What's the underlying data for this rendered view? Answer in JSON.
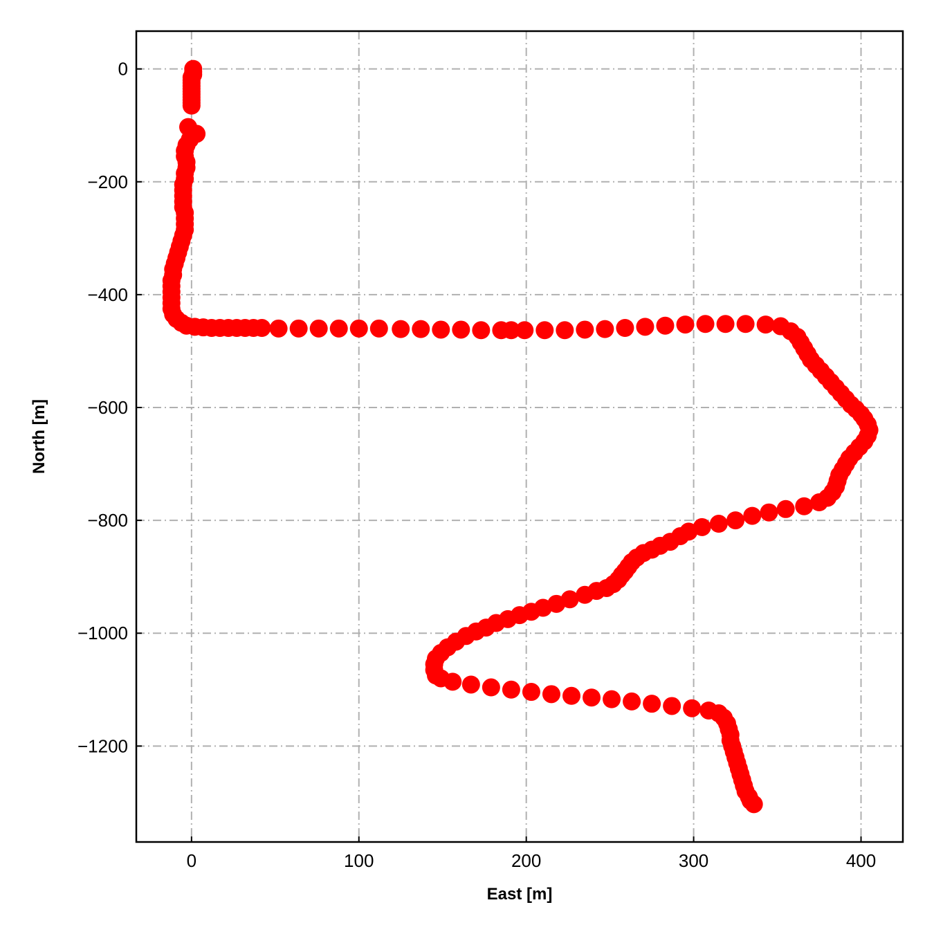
{
  "chart_data": {
    "type": "scatter",
    "title": "",
    "xlabel": "East [m]",
    "ylabel": "North [m]",
    "xlim": [
      -33,
      425
    ],
    "ylim": [
      -1370,
      67
    ],
    "grid": true,
    "xticks": [
      0,
      100,
      200,
      300,
      400
    ],
    "yticks": [
      0,
      -200,
      -400,
      -600,
      -800,
      -1000,
      -1200
    ],
    "xtick_labels": [
      "0",
      "100",
      "200",
      "300",
      "400"
    ],
    "ytick_labels": [
      "0",
      "−200",
      "−400",
      "−600",
      "−800",
      "−1000",
      "−1200"
    ],
    "marker_color": "#ff0000",
    "grid_color": "#b0b0b0",
    "series": [
      {
        "points": [
          [
            1,
            0
          ],
          [
            1,
            -5
          ],
          [
            1,
            -10
          ],
          [
            0,
            -15
          ],
          [
            0,
            -20
          ],
          [
            0,
            -25
          ],
          [
            0,
            -30
          ],
          [
            0,
            -35
          ],
          [
            0,
            -40
          ],
          [
            0,
            -45
          ],
          [
            0,
            -50
          ],
          [
            0,
            -55
          ],
          [
            0,
            -60
          ],
          [
            0,
            -65
          ],
          [
            -2,
            -103
          ],
          [
            3,
            -115
          ],
          [
            -1,
            -125
          ],
          [
            -3,
            -135
          ],
          [
            -4,
            -145
          ],
          [
            -4,
            -155
          ],
          [
            -3,
            -165
          ],
          [
            -3,
            -175
          ],
          [
            -4,
            -185
          ],
          [
            -4,
            -195
          ],
          [
            -5,
            -205
          ],
          [
            -5,
            -215
          ],
          [
            -5,
            -225
          ],
          [
            -5,
            -235
          ],
          [
            -5,
            -245
          ],
          [
            -4,
            -255
          ],
          [
            -4,
            -265
          ],
          [
            -4,
            -275
          ],
          [
            -4,
            -285
          ],
          [
            -5,
            -295
          ],
          [
            -6,
            -305
          ],
          [
            -7,
            -315
          ],
          [
            -8,
            -325
          ],
          [
            -9,
            -335
          ],
          [
            -10,
            -345
          ],
          [
            -11,
            -355
          ],
          [
            -11,
            -365
          ],
          [
            -12,
            -375
          ],
          [
            -12,
            -385
          ],
          [
            -12,
            -395
          ],
          [
            -12,
            -405
          ],
          [
            -12,
            -415
          ],
          [
            -12,
            -425
          ],
          [
            -11,
            -435
          ],
          [
            -9,
            -443
          ],
          [
            -6,
            -450
          ],
          [
            -3,
            -455
          ],
          [
            2,
            -457
          ],
          [
            7,
            -458
          ],
          [
            12,
            -459
          ],
          [
            17,
            -459
          ],
          [
            22,
            -459
          ],
          [
            27,
            -459
          ],
          [
            32,
            -459
          ],
          [
            37,
            -459
          ],
          [
            42,
            -459
          ],
          [
            52,
            -460
          ],
          [
            64,
            -460
          ],
          [
            76,
            -460
          ],
          [
            88,
            -460
          ],
          [
            100,
            -460
          ],
          [
            112,
            -460
          ],
          [
            125,
            -461
          ],
          [
            137,
            -461
          ],
          [
            149,
            -462
          ],
          [
            161,
            -462
          ],
          [
            173,
            -463
          ],
          [
            185,
            -463
          ],
          [
            191,
            -463
          ],
          [
            199,
            -463
          ],
          [
            211,
            -463
          ],
          [
            223,
            -463
          ],
          [
            235,
            -462
          ],
          [
            247,
            -461
          ],
          [
            259,
            -459
          ],
          [
            271,
            -457
          ],
          [
            283,
            -455
          ],
          [
            295,
            -453
          ],
          [
            307,
            -452
          ],
          [
            319,
            -452
          ],
          [
            331,
            -452
          ],
          [
            343,
            -453
          ],
          [
            352,
            -456
          ],
          [
            358,
            -465
          ],
          [
            362,
            -475
          ],
          [
            364,
            -485
          ],
          [
            366,
            -495
          ],
          [
            368,
            -505
          ],
          [
            370,
            -515
          ],
          [
            373,
            -525
          ],
          [
            376,
            -535
          ],
          [
            379,
            -545
          ],
          [
            382,
            -555
          ],
          [
            385,
            -565
          ],
          [
            388,
            -575
          ],
          [
            391,
            -585
          ],
          [
            394,
            -595
          ],
          [
            397,
            -603
          ],
          [
            400,
            -612
          ],
          [
            402,
            -620
          ],
          [
            404,
            -630
          ],
          [
            405,
            -640
          ],
          [
            404,
            -650
          ],
          [
            402,
            -660
          ],
          [
            399,
            -670
          ],
          [
            396,
            -680
          ],
          [
            393,
            -690
          ],
          [
            391,
            -700
          ],
          [
            389,
            -710
          ],
          [
            387,
            -720
          ],
          [
            386,
            -730
          ],
          [
            385,
            -740
          ],
          [
            383,
            -750
          ],
          [
            380,
            -760
          ],
          [
            375,
            -768
          ],
          [
            366,
            -775
          ],
          [
            355,
            -780
          ],
          [
            345,
            -786
          ],
          [
            335,
            -792
          ],
          [
            325,
            -800
          ],
          [
            315,
            -806
          ],
          [
            305,
            -812
          ],
          [
            297,
            -820
          ],
          [
            292,
            -828
          ],
          [
            286,
            -838
          ],
          [
            280,
            -845
          ],
          [
            275,
            -852
          ],
          [
            270,
            -858
          ],
          [
            266,
            -866
          ],
          [
            263,
            -874
          ],
          [
            261,
            -882
          ],
          [
            259,
            -890
          ],
          [
            257,
            -897
          ],
          [
            255,
            -905
          ],
          [
            252,
            -913
          ],
          [
            248,
            -920
          ],
          [
            242,
            -925
          ],
          [
            235,
            -932
          ],
          [
            226,
            -940
          ],
          [
            218,
            -948
          ],
          [
            210,
            -955
          ],
          [
            203,
            -962
          ],
          [
            196,
            -968
          ],
          [
            189,
            -975
          ],
          [
            182,
            -982
          ],
          [
            176,
            -990
          ],
          [
            170,
            -997
          ],
          [
            164,
            -1005
          ],
          [
            158,
            -1015
          ],
          [
            153,
            -1025
          ],
          [
            149,
            -1035
          ],
          [
            146,
            -1045
          ],
          [
            145,
            -1055
          ],
          [
            145,
            -1065
          ],
          [
            146,
            -1075
          ],
          [
            149,
            -1080
          ],
          [
            156,
            -1086
          ],
          [
            167,
            -1091
          ],
          [
            179,
            -1096
          ],
          [
            191,
            -1100
          ],
          [
            203,
            -1104
          ],
          [
            215,
            -1108
          ],
          [
            227,
            -1111
          ],
          [
            239,
            -1114
          ],
          [
            251,
            -1117
          ],
          [
            263,
            -1121
          ],
          [
            275,
            -1125
          ],
          [
            287,
            -1129
          ],
          [
            299,
            -1133
          ],
          [
            309,
            -1137
          ],
          [
            315,
            -1142
          ],
          [
            318,
            -1150
          ],
          [
            320,
            -1160
          ],
          [
            321,
            -1170
          ],
          [
            322,
            -1180
          ],
          [
            322,
            -1190
          ],
          [
            323,
            -1200
          ],
          [
            324,
            -1210
          ],
          [
            325,
            -1220
          ],
          [
            326,
            -1230
          ],
          [
            327,
            -1240
          ],
          [
            328,
            -1250
          ],
          [
            329,
            -1260
          ],
          [
            330,
            -1270
          ],
          [
            331,
            -1280
          ],
          [
            333,
            -1290
          ],
          [
            334,
            -1297
          ],
          [
            336,
            -1303
          ]
        ]
      }
    ]
  }
}
